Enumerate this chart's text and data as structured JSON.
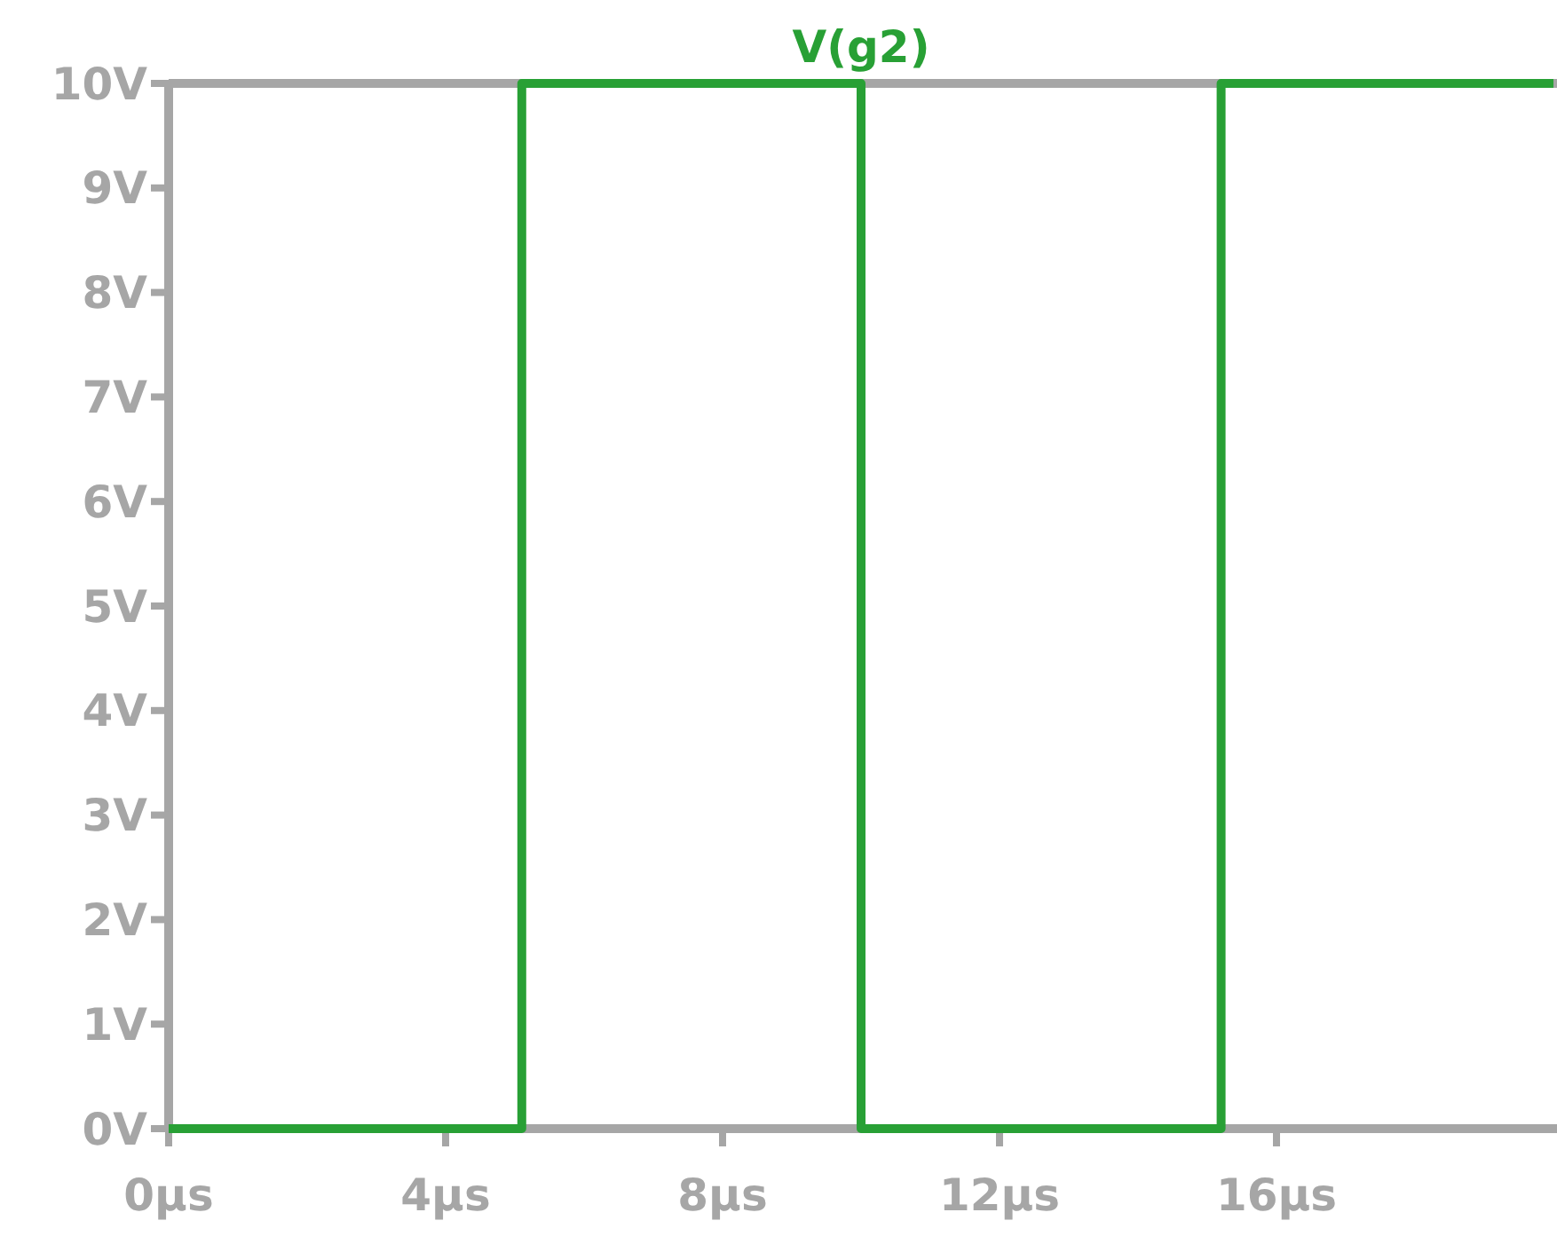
{
  "chart_data": {
    "type": "step",
    "x": [
      0,
      5.1,
      10,
      15.2,
      20
    ],
    "series": [
      {
        "name": "V(g2)",
        "color": "#28a035",
        "values": [
          0,
          10,
          0,
          10,
          10
        ]
      }
    ],
    "xlim": [
      0,
      20
    ],
    "xticks": [
      {
        "value": 0,
        "label": "0µs"
      },
      {
        "value": 4,
        "label": "4µs"
      },
      {
        "value": 8,
        "label": "8µs"
      },
      {
        "value": 12,
        "label": "12µs"
      },
      {
        "value": 16,
        "label": "16µs"
      }
    ],
    "ylim": [
      0,
      10
    ],
    "yticks": [
      {
        "value": 0,
        "label": "0V"
      },
      {
        "value": 1,
        "label": "1V"
      },
      {
        "value": 2,
        "label": "2V"
      },
      {
        "value": 3,
        "label": "3V"
      },
      {
        "value": 4,
        "label": "4V"
      },
      {
        "value": 5,
        "label": "5V"
      },
      {
        "value": 6,
        "label": "6V"
      },
      {
        "value": 7,
        "label": "7V"
      },
      {
        "value": 8,
        "label": "8V"
      },
      {
        "value": 9,
        "label": "9V"
      },
      {
        "value": 10,
        "label": "10V"
      }
    ],
    "legend": "top",
    "grid": false
  }
}
